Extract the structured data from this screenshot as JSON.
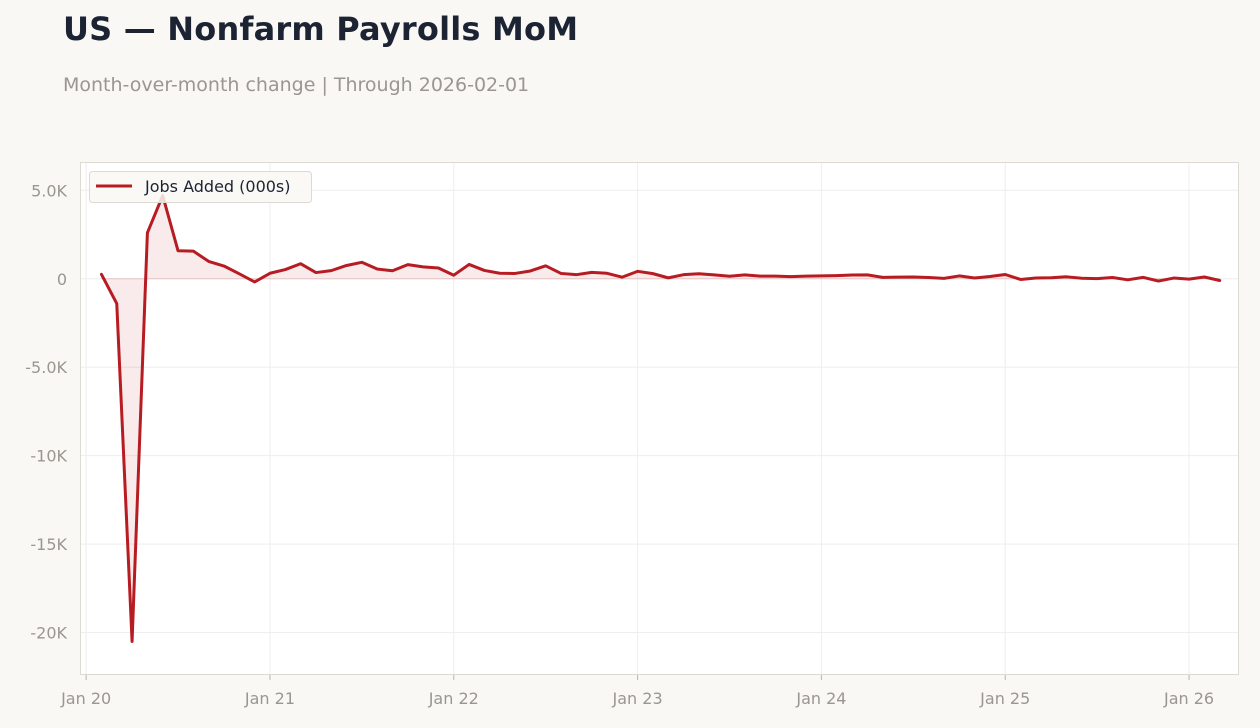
{
  "header": {
    "title": "US — Nonfarm Payrolls MoM",
    "subtitle": "Month-over-month change | Through 2026-02-01"
  },
  "colors": {
    "line": "#b71c22",
    "fill": "rgba(183,28,34,0.09)",
    "zero_line": "#e8c4c4",
    "grid": "#eeeeee",
    "axes_border": "#dcdad3",
    "legend_bg": "#f9f8f5"
  },
  "chart_data": {
    "type": "area",
    "title": "US — Nonfarm Payrolls MoM",
    "subtitle": "Month-over-month change | Through 2026-02-01",
    "xlabel": "",
    "ylabel": "",
    "x_tick_labels": [
      "Jan 20",
      "Jan 21",
      "Jan 22",
      "Jan 23",
      "Jan 24",
      "Jan 25",
      "Jan 26"
    ],
    "y_ticks": [
      5000,
      0,
      -5000,
      -10000,
      -15000,
      -20000
    ],
    "y_tick_labels": [
      "5.0K",
      "0",
      "-5.0K",
      "-10K",
      "-15K",
      "-20K"
    ],
    "ylim": [
      -22400,
      6600
    ],
    "xlim": [
      "2019-12",
      "2026-04"
    ],
    "grid": true,
    "legend_position": "top-left",
    "x_start": "2020-02",
    "x_step": "monthly",
    "series": [
      {
        "name": "Jobs Added (000s)",
        "values": [
          250,
          -1400,
          -20500,
          2600,
          4700,
          1580,
          1560,
          980,
          720,
          280,
          -180,
          310,
          520,
          850,
          350,
          460,
          750,
          930,
          550,
          450,
          800,
          670,
          610,
          200,
          810,
          470,
          310,
          300,
          440,
          730,
          300,
          230,
          360,
          310,
          90,
          420,
          290,
          50,
          230,
          280,
          220,
          140,
          220,
          150,
          150,
          120,
          150,
          160,
          180,
          210,
          220,
          80,
          90,
          100,
          70,
          20,
          160,
          40,
          130,
          240,
          -40,
          40,
          60,
          110,
          30,
          10,
          70,
          -60,
          80,
          -130,
          40,
          -20,
          100,
          -100
        ]
      }
    ]
  }
}
